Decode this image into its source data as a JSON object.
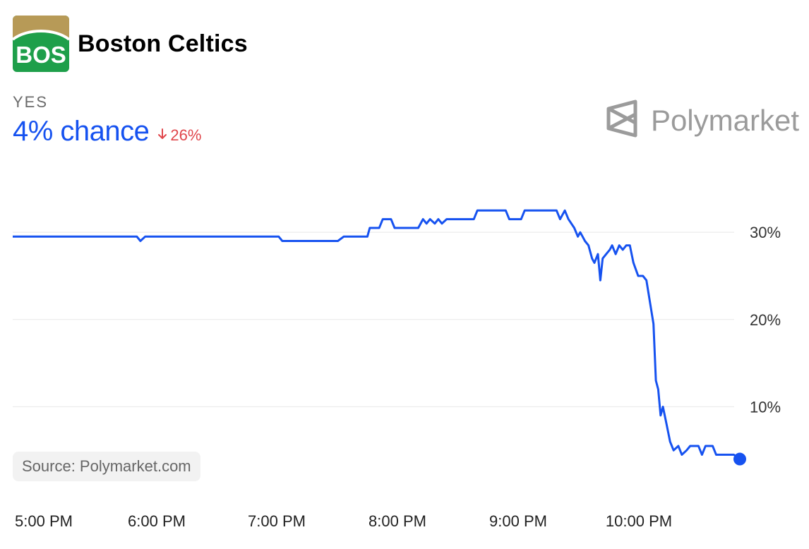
{
  "header": {
    "team_abbr": "BOS",
    "team_name": "Boston Celtics",
    "outcome_label": "YES",
    "chance": "4% chance",
    "change": "26%",
    "change_direction": "down"
  },
  "brand": {
    "name": "Polymarket",
    "icon": "polymarket-logo-icon"
  },
  "source": {
    "text": "Source: Polymarket.com"
  },
  "colors": {
    "line": "#1652f0",
    "change_negative": "#e0464b",
    "logo_green": "#1e9f4a",
    "logo_gold": "#b79a57",
    "grid": "#e8e8e8"
  },
  "chart_data": {
    "type": "line",
    "title": "",
    "xlabel": "",
    "ylabel": "",
    "x_ticks": [
      "5:00 PM",
      "6:00 PM",
      "7:00 PM",
      "8:00 PM",
      "9:00 PM",
      "10:00 PM"
    ],
    "y_ticks": [
      "10%",
      "20%",
      "30%"
    ],
    "y_tick_values": [
      10,
      20,
      30
    ],
    "ylim": [
      0,
      36
    ],
    "x_range_hours": [
      17.0,
      22.93
    ],
    "grid": true,
    "legend": "none",
    "series": [
      {
        "values_note": "x in hours of day (17 = 5:00 PM), y in percent",
        "points": [
          [
            17.0,
            29.5
          ],
          [
            18.05,
            29.5
          ],
          [
            18.08,
            29.0
          ],
          [
            18.12,
            29.5
          ],
          [
            19.25,
            29.5
          ],
          [
            19.28,
            29.0
          ],
          [
            19.75,
            29.0
          ],
          [
            19.8,
            29.5
          ],
          [
            20.0,
            29.5
          ],
          [
            20.02,
            30.5
          ],
          [
            20.1,
            30.5
          ],
          [
            20.13,
            31.5
          ],
          [
            20.2,
            31.5
          ],
          [
            20.23,
            30.5
          ],
          [
            20.43,
            30.5
          ],
          [
            20.47,
            31.5
          ],
          [
            20.5,
            31.0
          ],
          [
            20.53,
            31.5
          ],
          [
            20.57,
            31.0
          ],
          [
            20.6,
            31.5
          ],
          [
            20.63,
            31.0
          ],
          [
            20.67,
            31.5
          ],
          [
            20.9,
            31.5
          ],
          [
            20.93,
            32.5
          ],
          [
            21.17,
            32.5
          ],
          [
            21.2,
            31.5
          ],
          [
            21.3,
            31.5
          ],
          [
            21.33,
            32.5
          ],
          [
            21.6,
            32.5
          ],
          [
            21.63,
            31.5
          ],
          [
            21.67,
            32.5
          ],
          [
            21.7,
            31.5
          ],
          [
            21.75,
            30.5
          ],
          [
            21.78,
            29.5
          ],
          [
            21.8,
            30.0
          ],
          [
            21.82,
            29.5
          ],
          [
            21.84,
            29.0
          ],
          [
            21.87,
            28.5
          ],
          [
            21.9,
            27.0
          ],
          [
            21.92,
            26.5
          ],
          [
            21.95,
            27.5
          ],
          [
            21.97,
            24.5
          ],
          [
            21.99,
            27.0
          ],
          [
            22.02,
            27.5
          ],
          [
            22.05,
            28.0
          ],
          [
            22.07,
            28.5
          ],
          [
            22.1,
            27.5
          ],
          [
            22.13,
            28.5
          ],
          [
            22.16,
            28.0
          ],
          [
            22.19,
            28.5
          ],
          [
            22.22,
            28.5
          ],
          [
            22.25,
            26.5
          ],
          [
            22.29,
            25.0
          ],
          [
            22.33,
            25.0
          ],
          [
            22.36,
            24.5
          ],
          [
            22.39,
            22.0
          ],
          [
            22.42,
            19.5
          ],
          [
            22.44,
            13.0
          ],
          [
            22.46,
            12.0
          ],
          [
            22.48,
            9.0
          ],
          [
            22.5,
            10.0
          ],
          [
            22.53,
            8.0
          ],
          [
            22.56,
            6.0
          ],
          [
            22.59,
            5.0
          ],
          [
            22.63,
            5.5
          ],
          [
            22.66,
            4.5
          ],
          [
            22.7,
            5.0
          ],
          [
            22.73,
            5.5
          ],
          [
            22.8,
            5.5
          ],
          [
            22.83,
            4.5
          ],
          [
            22.86,
            5.5
          ],
          [
            22.92,
            5.5
          ],
          [
            22.95,
            4.5
          ],
          [
            23.1,
            4.5
          ],
          [
            23.15,
            4.0
          ]
        ]
      }
    ],
    "end_marker": {
      "x": 23.15,
      "y": 4.0
    }
  }
}
